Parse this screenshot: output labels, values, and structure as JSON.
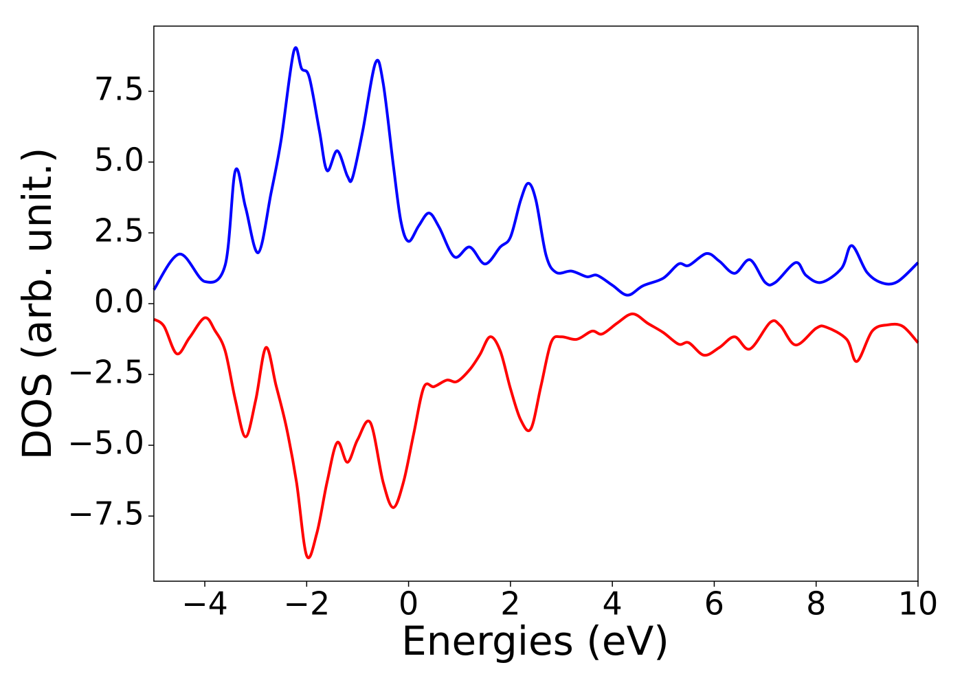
{
  "chart_data": {
    "type": "line",
    "xlabel": "Energies (eV)",
    "ylabel": "DOS (arb. unit.)",
    "xlim": [
      -5,
      10
    ],
    "ylim": [
      -9.8,
      9.8
    ],
    "xticks": [
      {
        "value": -4,
        "label": "−4"
      },
      {
        "value": -2,
        "label": "−2"
      },
      0,
      2,
      4,
      6,
      8,
      10
    ],
    "yticks": [
      {
        "value": -7.5,
        "label": "−7.5"
      },
      {
        "value": -5,
        "label": "−5.0"
      },
      {
        "value": -2.5,
        "label": "−2.5"
      },
      {
        "value": 0,
        "label": "0.0"
      },
      2.5,
      {
        "value": 5,
        "label": "5.0"
      },
      7.5
    ],
    "series": [
      {
        "color": "#0000ff",
        "x": [
          -5,
          -4.5,
          -4.0,
          -3.6,
          -3.4,
          -3.2,
          -2.95,
          -2.7,
          -2.5,
          -2.25,
          -2.1,
          -1.95,
          -1.75,
          -1.6,
          -1.4,
          -1.2,
          -1.1,
          -0.9,
          -0.65,
          -0.5,
          -0.3,
          -0.15,
          0,
          0.2,
          0.4,
          0.6,
          0.9,
          1.2,
          1.5,
          1.8,
          2.0,
          2.2,
          2.35,
          2.5,
          2.7,
          2.9,
          3.2,
          3.5,
          3.7,
          4.0,
          4.3,
          4.6,
          5.0,
          5.3,
          5.5,
          5.85,
          6.1,
          6.4,
          6.7,
          7.0,
          7.2,
          7.6,
          7.8,
          8.1,
          8.5,
          8.7,
          9.0,
          9.3,
          9.6,
          10
        ],
        "values": [
          0.49,
          1.75,
          0.78,
          1.36,
          4.7,
          3.4,
          1.8,
          3.9,
          5.8,
          8.93,
          8.3,
          8.0,
          6.1,
          4.7,
          5.4,
          4.5,
          4.45,
          6.1,
          8.5,
          7.8,
          4.9,
          2.9,
          2.2,
          2.75,
          3.2,
          2.7,
          1.65,
          2.0,
          1.4,
          2.0,
          2.35,
          3.65,
          4.25,
          3.65,
          1.7,
          1.1,
          1.15,
          0.95,
          1.0,
          0.65,
          0.3,
          0.63,
          0.9,
          1.4,
          1.35,
          1.77,
          1.5,
          1.07,
          1.55,
          0.75,
          0.75,
          1.45,
          1.0,
          0.75,
          1.25,
          2.05,
          1.1,
          0.73,
          0.78,
          1.45
        ]
      },
      {
        "color": "#ff0000",
        "x": [
          -5,
          -4.8,
          -4.55,
          -4.3,
          -4.0,
          -3.8,
          -3.6,
          -3.4,
          -3.2,
          -3.0,
          -2.8,
          -2.6,
          -2.4,
          -2.2,
          -2.0,
          -1.8,
          -1.6,
          -1.4,
          -1.2,
          -1.0,
          -0.75,
          -0.5,
          -0.3,
          -0.1,
          0.1,
          0.3,
          0.5,
          0.75,
          0.95,
          1.2,
          1.4,
          1.6,
          1.8,
          2.0,
          2.2,
          2.4,
          2.6,
          2.8,
          3.0,
          3.3,
          3.6,
          3.8,
          4.1,
          4.4,
          4.7,
          5.0,
          5.3,
          5.5,
          5.8,
          6.1,
          6.4,
          6.7,
          7.1,
          7.3,
          7.6,
          8.0,
          8.2,
          8.6,
          8.8,
          9.1,
          9.4,
          9.7,
          10
        ],
        "values": [
          -0.55,
          -0.8,
          -1.77,
          -1.2,
          -0.5,
          -0.95,
          -1.67,
          -3.4,
          -4.7,
          -3.4,
          -1.55,
          -2.9,
          -4.35,
          -6.3,
          -8.9,
          -8.1,
          -6.3,
          -4.9,
          -5.6,
          -4.8,
          -4.2,
          -6.3,
          -7.2,
          -6.3,
          -4.6,
          -2.95,
          -2.93,
          -2.7,
          -2.75,
          -2.33,
          -1.8,
          -1.17,
          -1.67,
          -3.0,
          -4.1,
          -4.42,
          -2.9,
          -1.36,
          -1.17,
          -1.26,
          -0.97,
          -1.07,
          -0.68,
          -0.36,
          -0.7,
          -1.02,
          -1.43,
          -1.38,
          -1.82,
          -1.55,
          -1.17,
          -1.6,
          -0.66,
          -0.78,
          -1.46,
          -0.87,
          -0.83,
          -1.26,
          -2.04,
          -0.97,
          -0.75,
          -0.8,
          -1.38
        ]
      }
    ]
  }
}
